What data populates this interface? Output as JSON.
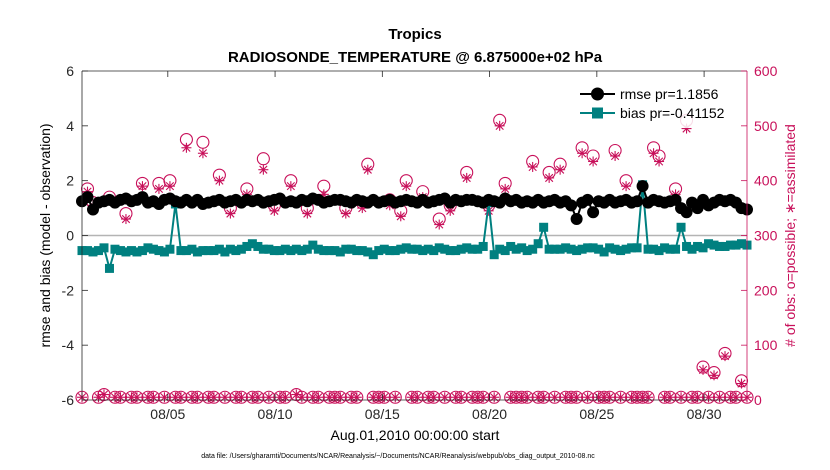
{
  "chart_data": {
    "type": "line",
    "title": "Tropics",
    "subtitle": "RADIOSONDE_TEMPERATURE @ 6.875000e+02 hPa",
    "xlabel": "Aug.01,2010 00:00:00 start",
    "ylabel": "rmse and bias (model - observation)",
    "y2label": "# of obs: o=possible; ∗=assimilated",
    "footer": "data file: /Users/gharamti/Documents/NCAR/Reanalysis/~/Documents/NCAR/Reanalysis/webpub/obs_diag_output_2010-08.nc",
    "xlim": [
      1.0,
      32.0
    ],
    "ylim": [
      -6,
      6
    ],
    "y2lim": [
      0,
      600
    ],
    "x_ticks": [
      5,
      10,
      15,
      20,
      25,
      30
    ],
    "x_tick_labels": [
      "08/05",
      "08/10",
      "08/15",
      "08/20",
      "08/25",
      "08/30"
    ],
    "y_ticks": [
      -6,
      -4,
      -2,
      0,
      2,
      4,
      6
    ],
    "y_tick_labels": [
      "-6",
      "-4",
      "-2",
      "0",
      "2",
      "4",
      "6"
    ],
    "y2_ticks": [
      0,
      100,
      200,
      300,
      400,
      500,
      600
    ],
    "y2_tick_labels": [
      "0",
      "100",
      "200",
      "300",
      "400",
      "500",
      "600"
    ],
    "legend_position": "top-right",
    "colors": {
      "rmse": "#000000",
      "bias": "#008080",
      "obs": "#c8105a",
      "zero": "#b4b4b4"
    },
    "series": [
      {
        "name": "rmse pr=1.1856",
        "axis": "left",
        "marker": "circle",
        "values": [
          1.25,
          1.4,
          0.95,
          1.2,
          1.25,
          1.3,
          1.2,
          1.3,
          1.35,
          1.25,
          1.3,
          1.4,
          1.2,
          1.25,
          1.15,
          1.3,
          1.35,
          1.25,
          1.2,
          1.3,
          1.2,
          1.3,
          1.15,
          1.2,
          1.25,
          1.3,
          1.2,
          1.25,
          1.3,
          1.2,
          1.3,
          1.25,
          1.3,
          1.2,
          1.25,
          1.3,
          1.35,
          1.2,
          1.25,
          1.2,
          1.3,
          1.25,
          1.35,
          1.3,
          1.2,
          1.25,
          1.3,
          1.3,
          1.25,
          1.2,
          1.3,
          1.25,
          1.2,
          1.3,
          1.2,
          1.25,
          1.3,
          1.2,
          1.25,
          1.3,
          1.25,
          1.2,
          1.3,
          1.2,
          1.25,
          1.3,
          1.35,
          1.2,
          1.3,
          1.25,
          1.3,
          1.3,
          1.25,
          1.2,
          1.3,
          1.25,
          1.2,
          1.35,
          1.25,
          1.3,
          1.2,
          1.25,
          1.2,
          1.3,
          1.2,
          1.25,
          1.3,
          1.2,
          1.25,
          1.1,
          0.6,
          1.2,
          1.3,
          0.85,
          1.25,
          1.2,
          1.3,
          1.2,
          1.25,
          1.3,
          1.2,
          1.25,
          1.8,
          1.2,
          1.3,
          1.25,
          1.2,
          1.25,
          1.3,
          1.0,
          0.85,
          1.2,
          1.0,
          1.3,
          1.1,
          1.2,
          1.3,
          1.25,
          1.3,
          1.2,
          1.0,
          0.95
        ]
      },
      {
        "name": "bias pr=-0.41152",
        "axis": "left",
        "marker": "square",
        "values": [
          -0.55,
          -0.55,
          -0.6,
          -0.55,
          -0.45,
          -1.2,
          -0.5,
          -0.55,
          -0.6,
          -0.55,
          -0.6,
          -0.55,
          -0.45,
          -0.5,
          -0.55,
          -0.6,
          -0.5,
          1.15,
          -0.55,
          -0.55,
          -0.5,
          -0.6,
          -0.55,
          -0.55,
          -0.55,
          -0.5,
          -0.6,
          -0.5,
          -0.55,
          -0.5,
          -0.4,
          -0.3,
          -0.4,
          -0.5,
          -0.5,
          -0.55,
          -0.55,
          -0.5,
          -0.55,
          -0.5,
          -0.55,
          -0.5,
          -0.35,
          -0.5,
          -0.55,
          -0.55,
          -0.55,
          -0.6,
          -0.5,
          -0.5,
          -0.55,
          -0.55,
          -0.6,
          -0.7,
          -0.55,
          -0.5,
          -0.55,
          -0.55,
          -0.5,
          -0.45,
          -0.5,
          -0.5,
          -0.55,
          -0.5,
          -0.55,
          -0.45,
          -0.5,
          -0.55,
          -0.55,
          -0.5,
          -0.45,
          -0.5,
          -0.5,
          -0.4,
          1.2,
          -0.7,
          -0.5,
          -0.55,
          -0.4,
          -0.5,
          -0.45,
          -0.55,
          -0.5,
          -0.3,
          0.3,
          -0.5,
          -0.5,
          -0.5,
          -0.45,
          -0.5,
          -0.55,
          -0.5,
          -0.45,
          -0.45,
          -0.5,
          -0.6,
          -0.45,
          -0.5,
          -0.55,
          -0.5,
          -0.45,
          -0.45,
          1.85,
          -0.5,
          -0.5,
          -0.55,
          -0.45,
          -0.5,
          -0.5,
          0.3,
          -0.4,
          -0.5,
          -0.4,
          -0.45,
          -0.3,
          -0.35,
          -0.4,
          -0.4,
          -0.35,
          -0.35,
          -0.3,
          -0.35
        ]
      },
      {
        "name": "possible",
        "axis": "right",
        "marker": "open-circle",
        "values": [
          5,
          385,
          360,
          5,
          10,
          370,
          5,
          5,
          340,
          5,
          5,
          395,
          5,
          5,
          395,
          5,
          400,
          5,
          5,
          475,
          5,
          5,
          470,
          5,
          5,
          410,
          5,
          350,
          5,
          5,
          385,
          5,
          5,
          440,
          5,
          355,
          5,
          5,
          400,
          10,
          5,
          350,
          5,
          5,
          390,
          5,
          5,
          5,
          350,
          5,
          5,
          360,
          430,
          5,
          5,
          5,
          365,
          5,
          345,
          400,
          5,
          5,
          380,
          5,
          5,
          330,
          5,
          355,
          5,
          5,
          415,
          5,
          5,
          5,
          355,
          5,
          510,
          395,
          5,
          5,
          5,
          5,
          435,
          5,
          5,
          415,
          5,
          430,
          5,
          5,
          5,
          460,
          5,
          445,
          5,
          5,
          5,
          455,
          5,
          400,
          5,
          5,
          5,
          5,
          460,
          445,
          5,
          5,
          385,
          5,
          510,
          5,
          5,
          60,
          5,
          50,
          5,
          85,
          5,
          5,
          35,
          5
        ]
      },
      {
        "name": "assimilated",
        "axis": "right",
        "marker": "asterisk",
        "values": [
          5,
          380,
          355,
          5,
          10,
          365,
          5,
          5,
          330,
          5,
          5,
          390,
          5,
          5,
          385,
          5,
          390,
          5,
          5,
          460,
          5,
          5,
          450,
          5,
          5,
          400,
          5,
          340,
          5,
          5,
          375,
          5,
          5,
          420,
          5,
          345,
          5,
          5,
          390,
          10,
          5,
          340,
          5,
          5,
          375,
          5,
          5,
          5,
          340,
          5,
          5,
          350,
          420,
          5,
          5,
          5,
          355,
          5,
          335,
          390,
          5,
          5,
          370,
          5,
          5,
          320,
          5,
          345,
          5,
          5,
          405,
          5,
          5,
          5,
          345,
          5,
          500,
          385,
          5,
          5,
          5,
          5,
          425,
          5,
          5,
          405,
          5,
          420,
          5,
          5,
          5,
          450,
          5,
          435,
          5,
          5,
          5,
          445,
          5,
          390,
          5,
          5,
          5,
          5,
          450,
          435,
          5,
          5,
          375,
          5,
          495,
          5,
          5,
          55,
          5,
          45,
          5,
          80,
          5,
          5,
          30,
          5
        ]
      }
    ]
  }
}
